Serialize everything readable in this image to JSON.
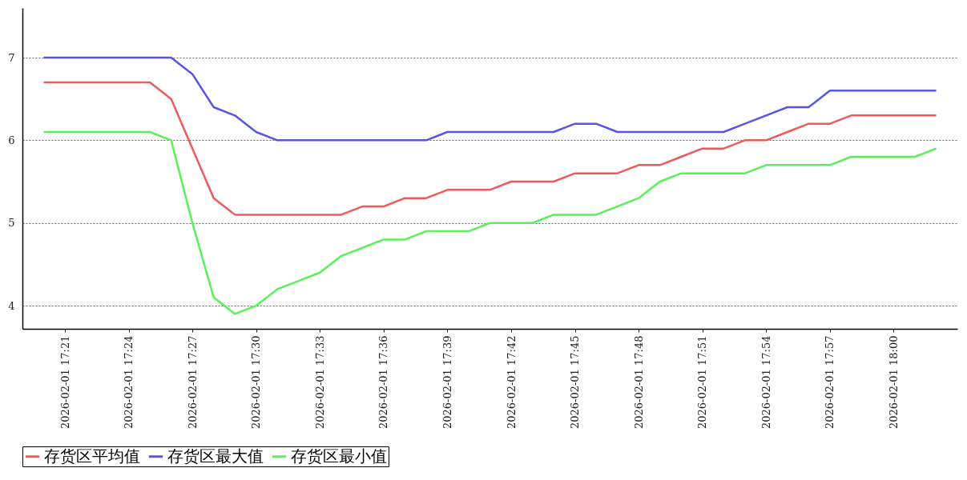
{
  "chart_data": {
    "type": "line",
    "x": [
      "2026-02-01T17:20",
      "2026-02-01T17:21",
      "2026-02-01T17:22",
      "2026-02-01T17:23",
      "2026-02-01T17:24",
      "2026-02-01T17:25",
      "2026-02-01T17:26",
      "2026-02-01T17:27",
      "2026-02-01T17:28",
      "2026-02-01T17:29",
      "2026-02-01T17:30",
      "2026-02-01T17:31",
      "2026-02-01T17:32",
      "2026-02-01T17:33",
      "2026-02-01T17:34",
      "2026-02-01T17:35",
      "2026-02-01T17:36",
      "2026-02-01T17:37",
      "2026-02-01T17:38",
      "2026-02-01T17:39",
      "2026-02-01T17:40",
      "2026-02-01T17:41",
      "2026-02-01T17:42",
      "2026-02-01T17:43",
      "2026-02-01T17:44",
      "2026-02-01T17:45",
      "2026-02-01T17:46",
      "2026-02-01T17:47",
      "2026-02-01T17:48",
      "2026-02-01T17:49",
      "2026-02-01T17:50",
      "2026-02-01T17:51",
      "2026-02-01T17:52",
      "2026-02-01T17:53",
      "2026-02-01T17:54",
      "2026-02-01T17:55",
      "2026-02-01T17:56",
      "2026-02-01T17:57",
      "2026-02-01T17:58",
      "2026-02-01T17:59",
      "2026-02-01T18:00",
      "2026-02-01T18:01",
      "2026-02-01T18:02"
    ],
    "series": [
      {
        "name": "存货区平均值",
        "color": "#ee5a5a",
        "values": [
          6.7,
          6.7,
          6.7,
          6.7,
          6.7,
          6.7,
          6.5,
          5.9,
          5.3,
          5.1,
          5.1,
          5.1,
          5.1,
          5.1,
          5.1,
          5.2,
          5.2,
          5.3,
          5.3,
          5.4,
          5.4,
          5.4,
          5.5,
          5.5,
          5.5,
          5.6,
          5.6,
          5.6,
          5.7,
          5.7,
          5.8,
          5.9,
          5.9,
          6.0,
          6.0,
          6.1,
          6.2,
          6.2,
          6.3,
          6.3,
          6.3,
          6.3,
          6.3
        ]
      },
      {
        "name": "存货区最大值",
        "color": "#5555e8",
        "values": [
          7.0,
          7.0,
          7.0,
          7.0,
          7.0,
          7.0,
          7.0,
          6.8,
          6.4,
          6.3,
          6.1,
          6.0,
          6.0,
          6.0,
          6.0,
          6.0,
          6.0,
          6.0,
          6.0,
          6.1,
          6.1,
          6.1,
          6.1,
          6.1,
          6.1,
          6.2,
          6.2,
          6.1,
          6.1,
          6.1,
          6.1,
          6.1,
          6.1,
          6.2,
          6.3,
          6.4,
          6.4,
          6.6,
          6.6,
          6.6,
          6.6,
          6.6,
          6.6
        ]
      },
      {
        "name": "存货区最小值",
        "color": "#5af05a",
        "values": [
          6.1,
          6.1,
          6.1,
          6.1,
          6.1,
          6.1,
          6.0,
          5.0,
          4.1,
          3.9,
          4.0,
          4.2,
          4.3,
          4.4,
          4.6,
          4.7,
          4.8,
          4.8,
          4.9,
          4.9,
          4.9,
          5.0,
          5.0,
          5.0,
          5.1,
          5.1,
          5.1,
          5.2,
          5.3,
          5.5,
          5.6,
          5.6,
          5.6,
          5.6,
          5.7,
          5.7,
          5.7,
          5.7,
          5.8,
          5.8,
          5.8,
          5.8,
          5.9
        ]
      }
    ],
    "ylim": [
      3.72,
      7.6
    ],
    "yticks": [
      4,
      5,
      6,
      7
    ],
    "xlim": [
      "2026-02-01T17:19",
      "2026-02-01T18:03"
    ],
    "xticks": [
      {
        "value": "2026-02-01T17:21",
        "label": "2026-02-01  17:21"
      },
      {
        "value": "2026-02-01T17:24",
        "label": "2026-02-01  17:24"
      },
      {
        "value": "2026-02-01T17:27",
        "label": "2026-02-01  17:27"
      },
      {
        "value": "2026-02-01T17:30",
        "label": "2026-02-01  17:30"
      },
      {
        "value": "2026-02-01T17:33",
        "label": "2026-02-01  17:33"
      },
      {
        "value": "2026-02-01T17:36",
        "label": "2026-02-01  17:36"
      },
      {
        "value": "2026-02-01T17:39",
        "label": "2026-02-01  17:39"
      },
      {
        "value": "2026-02-01T17:42",
        "label": "2026-02-01  17:42"
      },
      {
        "value": "2026-02-01T17:45",
        "label": "2026-02-01  17:45"
      },
      {
        "value": "2026-02-01T17:48",
        "label": "2026-02-01  17:48"
      },
      {
        "value": "2026-02-01T17:51",
        "label": "2026-02-01  17:51"
      },
      {
        "value": "2026-02-01T17:54",
        "label": "2026-02-01  17:54"
      },
      {
        "value": "2026-02-01T17:57",
        "label": "2026-02-01  17:57"
      },
      {
        "value": "2026-02-01T18:00",
        "label": "2026-02-01  18:00"
      }
    ],
    "grid": "y",
    "legend": "bottom"
  }
}
